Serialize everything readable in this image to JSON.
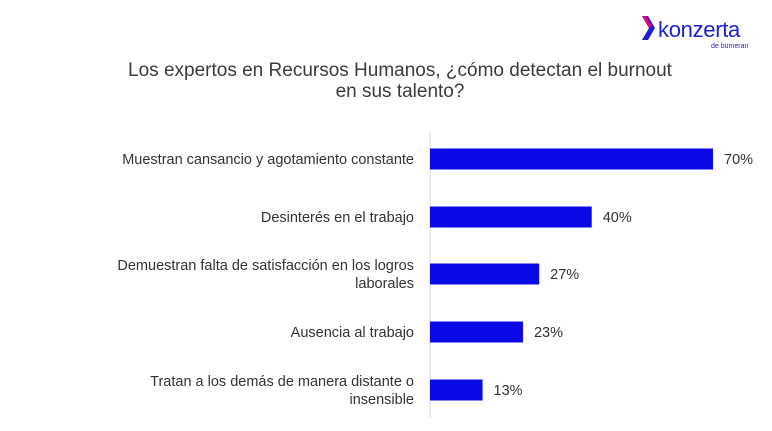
{
  "brand": {
    "name": "konzerta",
    "tagline": "de bumeran",
    "accent": "#1b1fd6"
  },
  "chart_data": {
    "type": "bar",
    "orientation": "horizontal",
    "title": "Los expertos en Recursos Humanos, ¿cómo detectan el burnout\nen sus talento?",
    "categories": [
      "Muestran cansancio y agotamiento constante",
      "Desinterés en el trabajo",
      "Demuestran falta de satisfacción en los logros laborales",
      "Ausencia al trabajo",
      "Tratan a los demás de manera distante o insensible"
    ],
    "category_lines": [
      [
        "Muestran cansancio y agotamiento constante"
      ],
      [
        "Desinterés en el trabajo"
      ],
      [
        "Demuestran falta de satisfacción en los logros",
        "laborales"
      ],
      [
        "Ausencia al trabajo"
      ],
      [
        "Tratan a los demás de manera distante o",
        "insensible"
      ]
    ],
    "values": [
      70,
      40,
      27,
      23,
      13
    ],
    "value_labels": [
      "70%",
      "40%",
      "27%",
      "23%",
      "13%"
    ],
    "xlim": [
      0,
      70
    ],
    "bar_color": "#0a0ae6",
    "grid": false
  }
}
